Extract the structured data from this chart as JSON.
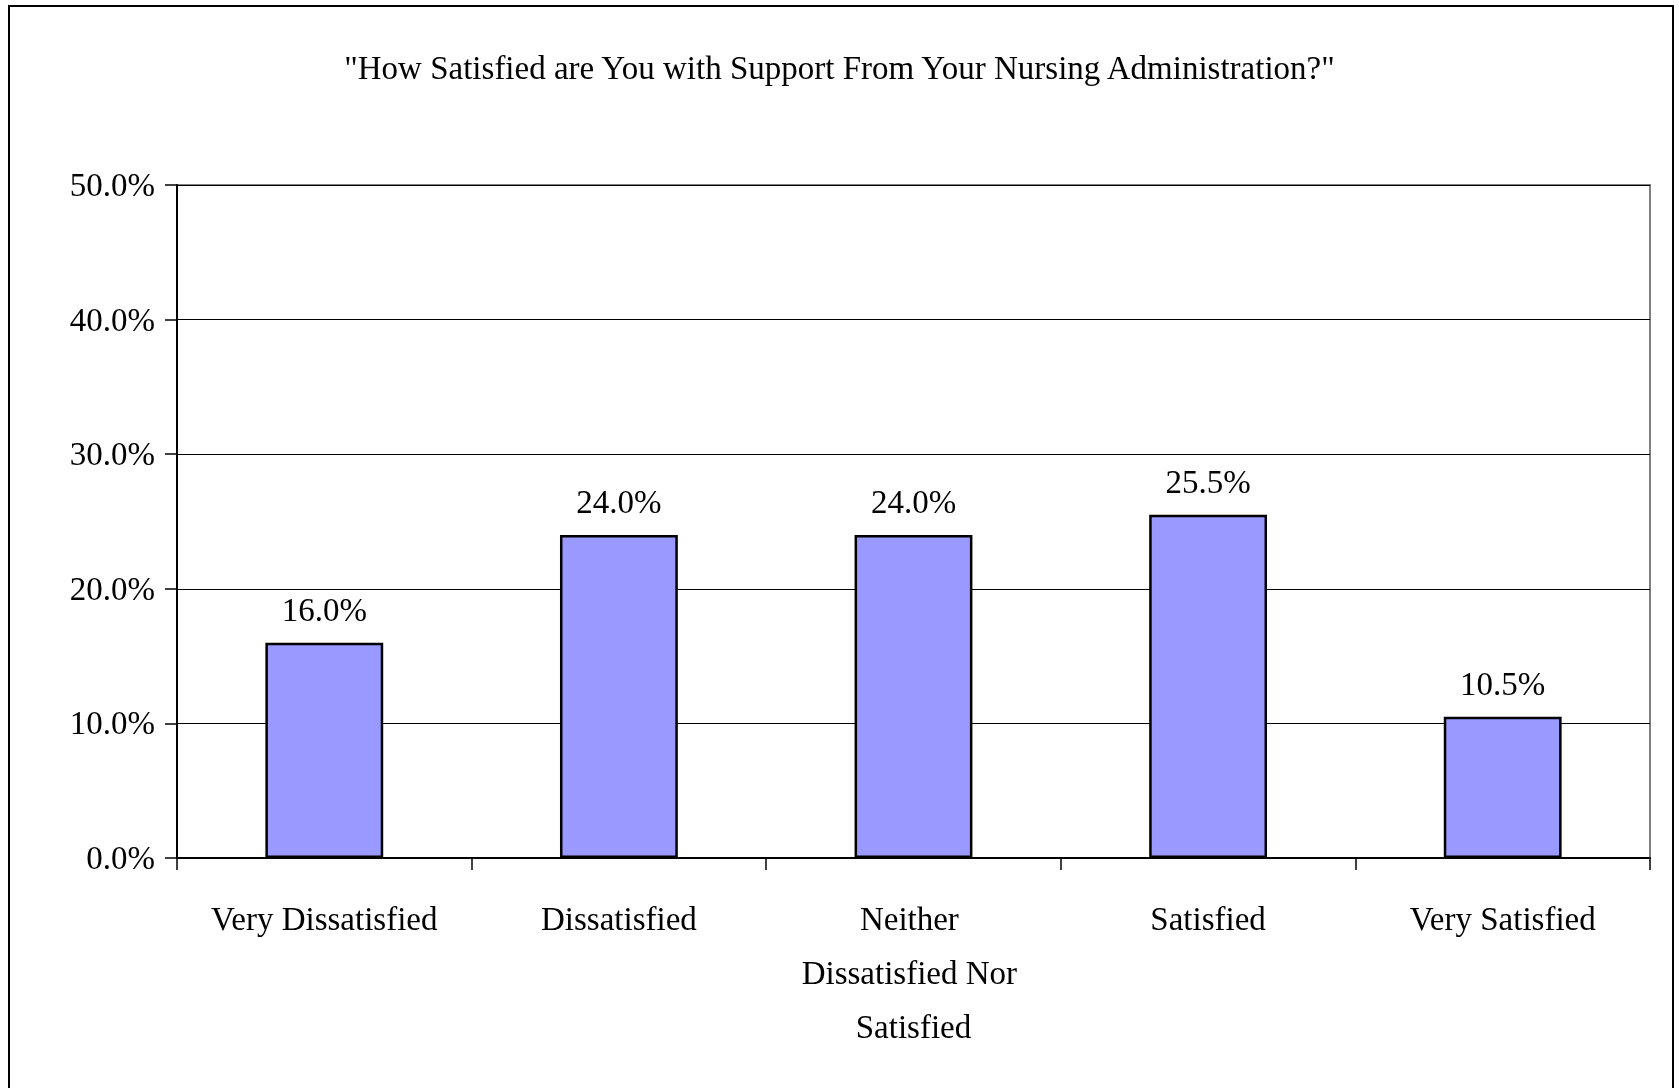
{
  "chart_data": {
    "type": "bar",
    "title": "\"How Satisfied are You with Support From Your Nursing Administration?\"",
    "categories": [
      "Very Dissatisfied",
      "Dissatisfied",
      "Neither Dissatisfied Nor Satisfied",
      "Satisfied",
      "Very Satisfied"
    ],
    "values": [
      16.0,
      24.0,
      24.0,
      25.5,
      10.5
    ],
    "color": "#9999ff",
    "value_labels": [
      "16.0%",
      "24.0%",
      "24.0%",
      "25.5%",
      "10.5%"
    ],
    "ylim": [
      0,
      50
    ],
    "yticks": [
      {
        "value": 0,
        "label": "0.0%"
      },
      {
        "value": 10,
        "label": "10.0%"
      },
      {
        "value": 20,
        "label": "20.0%"
      },
      {
        "value": 30,
        "label": "30.0%"
      },
      {
        "value": 40,
        "label": "40.0%"
      },
      {
        "value": 50,
        "label": "50.0%"
      }
    ],
    "grid": "y"
  }
}
